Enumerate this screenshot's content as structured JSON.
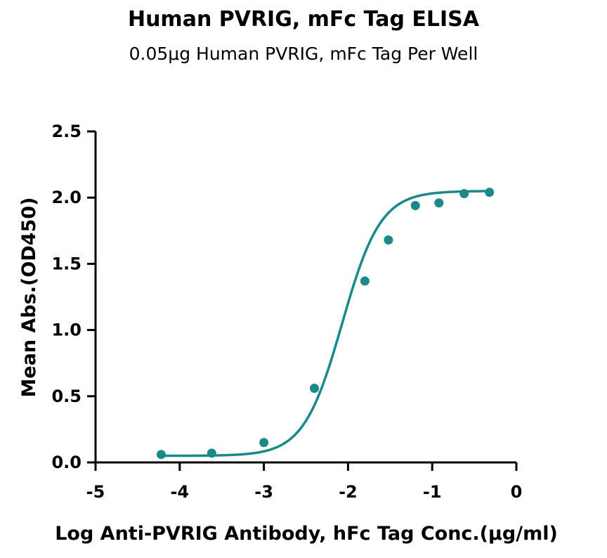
{
  "chart_data": {
    "type": "scatter",
    "title": "Human PVRIG, mFc Tag ELISA",
    "subtitle": "0.05μg Human PVRIG, mFc Tag Per Well",
    "xlabel": "Log Anti-PVRIG Antibody, hFc Tag Conc.(μg/ml)",
    "ylabel": "Mean Abs.(OD450)",
    "xlim": [
      -5,
      0
    ],
    "ylim": [
      0,
      2.5
    ],
    "x_ticks": [
      "-5",
      "-4",
      "-3",
      "-2",
      "-1",
      "0"
    ],
    "y_ticks": [
      "0.0",
      "0.5",
      "1.0",
      "1.5",
      "2.0",
      "2.5"
    ],
    "x_tick_values": [
      -5,
      -4,
      -3,
      -2,
      -1,
      0
    ],
    "y_tick_values": [
      0,
      0.5,
      1.0,
      1.5,
      2.0,
      2.5
    ],
    "grid": false,
    "series": [
      {
        "x": [
          -4.22,
          -3.62,
          -3.0,
          -2.4,
          -1.8,
          -1.52,
          -1.2,
          -0.92,
          -0.62,
          -0.32
        ],
        "y": [
          0.06,
          0.07,
          0.15,
          0.56,
          1.37,
          1.68,
          1.94,
          1.96,
          2.03,
          2.04
        ],
        "color": "#19898a",
        "marker": "circle",
        "fit": "4PL",
        "fit_params": {
          "bottom": 0.05,
          "top": 2.05,
          "ec50_log": -2.07,
          "hill": 1.9
        }
      }
    ]
  }
}
